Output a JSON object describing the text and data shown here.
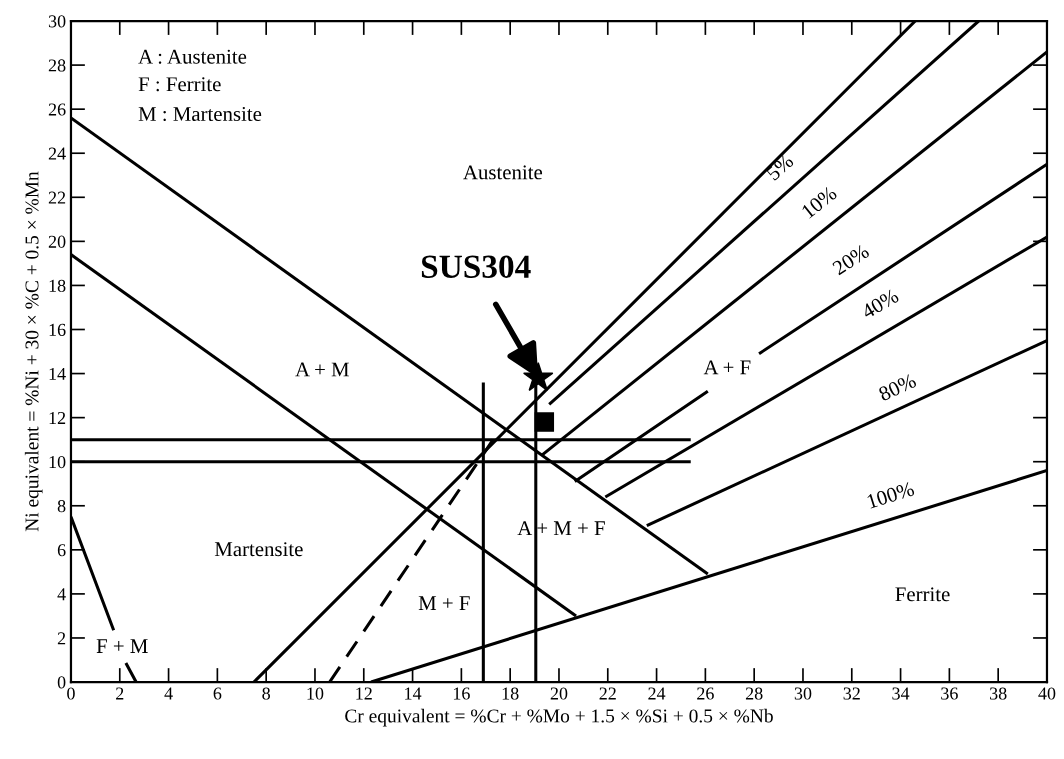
{
  "chart_data": {
    "type": "line",
    "xlabel": "Cr equivalent = %Cr + %Mo + 1.5 × %Si + 0.5 × %Nb",
    "ylabel": "Ni equivalent = %Ni + 30 × %C + 0.5 × %Mn",
    "xlim": [
      0,
      40
    ],
    "ylim": [
      0,
      30
    ],
    "xticks": [
      0,
      2,
      4,
      6,
      8,
      10,
      12,
      14,
      16,
      18,
      20,
      22,
      24,
      26,
      28,
      30,
      32,
      34,
      36,
      38,
      40
    ],
    "yticks": [
      0,
      2,
      4,
      6,
      8,
      10,
      12,
      14,
      16,
      18,
      20,
      22,
      24,
      26,
      28,
      30
    ],
    "grid": false,
    "marker": "none",
    "line_style": "solid",
    "series": [
      {
        "color": "#000000",
        "x": [
          0,
          26.1
        ],
        "values": [
          25.6,
          4.9
        ]
      },
      {
        "color": "#000000",
        "x": [
          0,
          20.7
        ],
        "values": [
          19.4,
          3.0
        ]
      },
      {
        "color": "#000000",
        "x": [
          0,
          1.75,
          2.0,
          2.25,
          2.67
        ],
        "values": [
          7.5,
          2.35,
          null,
          0.86,
          0
        ]
      },
      {
        "color": "#000000",
        "x": [
          7.5,
          34.6
        ],
        "values": [
          0,
          30
        ]
      },
      {
        "color": "#000000",
        "x": [
          10.6,
          17.3
        ],
        "values": [
          0,
          11.0
        ],
        "line_style": "dashed"
      },
      {
        "color": "#000000",
        "x": [
          19.6,
          37.2
        ],
        "values": [
          12.6,
          30
        ]
      },
      {
        "color": "#000000",
        "x": [
          19.3,
          40
        ],
        "values": [
          10.3,
          28.6
        ]
      },
      {
        "color": "#000000",
        "x": [
          20.65,
          26.1,
          27.1,
          28.2,
          40
        ],
        "values": [
          9.1,
          13.2,
          null,
          14.9,
          23.5
        ]
      },
      {
        "color": "#000000",
        "x": [
          21.9,
          40
        ],
        "values": [
          8.4,
          20.2
        ]
      },
      {
        "color": "#000000",
        "x": [
          23.6,
          40
        ],
        "values": [
          7.1,
          15.5
        ]
      },
      {
        "color": "#000000",
        "x": [
          12.3,
          40
        ],
        "values": [
          0,
          9.6
        ]
      },
      {
        "color": "#000000",
        "x": [
          0,
          25.4
        ],
        "values": [
          11,
          11
        ]
      },
      {
        "color": "#000000",
        "x": [
          0,
          25.4
        ],
        "values": [
          10,
          10
        ]
      },
      {
        "color": "#000000",
        "x": [
          16.9,
          16.9
        ],
        "values": [
          0,
          13.6
        ]
      },
      {
        "color": "#000000",
        "x": [
          19.05,
          19.05
        ],
        "values": [
          0,
          13.6
        ]
      },
      {
        "type": "scatter",
        "color": "#000000",
        "marker": "star",
        "x": [
          19.15
        ],
        "values": [
          13.8
        ]
      },
      {
        "type": "scatter",
        "color": "#000000",
        "marker": "square",
        "x": [
          19.4
        ],
        "values": [
          11.8
        ]
      }
    ],
    "annotations": [
      "A : Austenite",
      "F : Ferrite",
      "M : Martensite",
      "Austenite",
      "A + M",
      "Martensite",
      "F + M",
      "M + F",
      "A + M + F",
      "A + F",
      "Ferrite",
      "5%",
      "10%",
      "20%",
      "40%",
      "80%",
      "100%",
      {
        "text": "SUS304",
        "x": 19.15,
        "y": 13.8
      }
    ]
  }
}
